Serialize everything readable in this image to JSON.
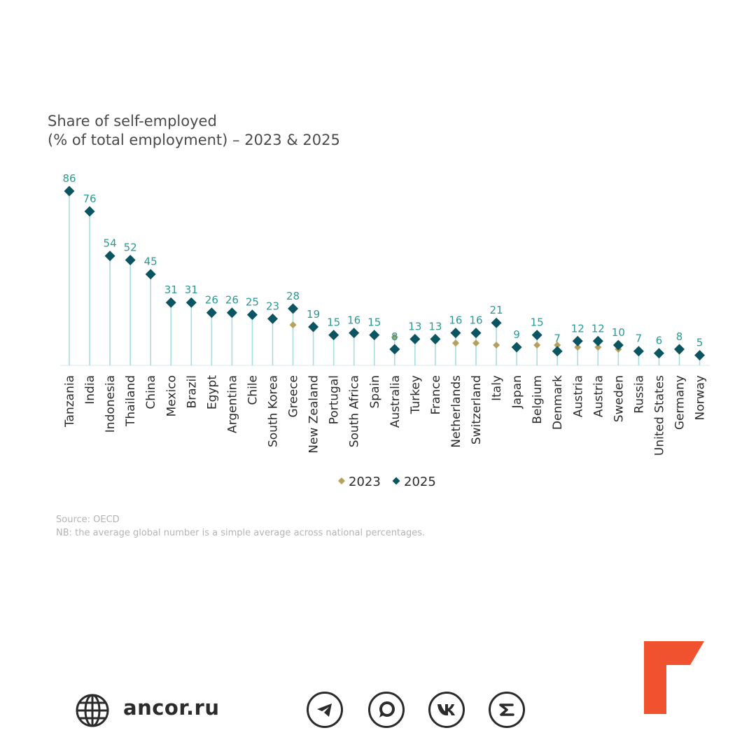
{
  "chart_data": {
    "type": "scatter",
    "title": [
      "Share of self-employed",
      "(% of total employment) – 2023 & 2025"
    ],
    "categories": [
      "Tanzania",
      "India",
      "Indonesia",
      "Thailand",
      "China",
      "Mexico",
      "Brazil",
      "Egypt",
      "Argentina",
      "Chile",
      "South Korea",
      "Greece",
      "New Zealand",
      "Portugal",
      "South Africa",
      "Spain",
      "Australia",
      "Turkey",
      "France",
      "Netherlands",
      "Switzerland",
      "Italy",
      "Japan",
      "Belgium",
      "Denmark",
      "Austria",
      "Austria",
      "Sweden",
      "Russia",
      "United States",
      "Germany",
      "Norway"
    ],
    "series": [
      {
        "name": "2023",
        "color": "#b5a05e",
        "values": [
          null,
          null,
          null,
          null,
          null,
          null,
          null,
          null,
          null,
          null,
          null,
          20,
          null,
          null,
          null,
          null,
          14,
          null,
          12,
          11,
          11,
          10,
          null,
          10,
          10,
          9,
          9,
          8,
          null,
          null,
          7,
          null
        ]
      },
      {
        "name": "2025",
        "color": "#0b5563",
        "values": [
          86,
          76,
          54,
          52,
          45,
          31,
          31,
          26,
          26,
          25,
          23,
          28,
          19,
          15,
          16,
          15,
          8,
          13,
          13,
          16,
          16,
          21,
          9,
          15,
          7,
          12,
          12,
          10,
          7,
          6,
          8,
          5
        ]
      }
    ],
    "labels": [
      "86",
      "76",
      "54",
      "52",
      "45",
      "31",
      "31",
      "26",
      "26",
      "25",
      "23",
      "28",
      "19",
      "15",
      "16",
      "15",
      "8",
      "13",
      "13",
      "16",
      "16",
      "21",
      "9",
      "15",
      "7",
      "12",
      "12",
      "10",
      "7",
      "6",
      "8",
      "5"
    ],
    "label_color": "#2a9a95",
    "stem_color": "#a9dcdc",
    "ylim": [
      0,
      86
    ],
    "grid": false,
    "legend": {
      "position": "bottom",
      "items": [
        "2023",
        "2025"
      ]
    },
    "xlabel": "",
    "ylabel": ""
  },
  "source": {
    "line1": "Source: OECD",
    "line2": "NB: the average global number is a simple average across national percentages."
  },
  "footer": {
    "site": "ancor.ru",
    "icons": [
      "globe-icon",
      "telegram-icon",
      "chat-icon",
      "vk-icon",
      "zen-icon"
    ],
    "brand_color": "#f0522f"
  }
}
